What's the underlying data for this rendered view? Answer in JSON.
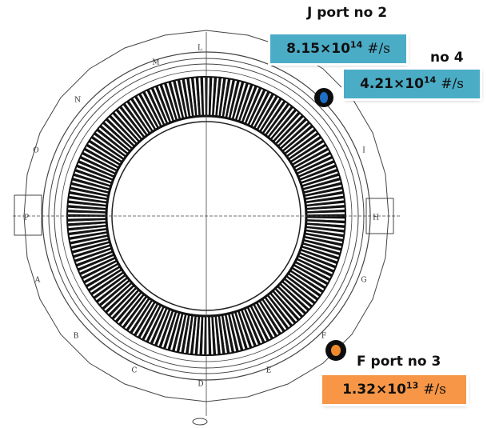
{
  "ports": [
    "A",
    "B",
    "C",
    "D",
    "E",
    "F",
    "G",
    "H",
    "I",
    "L",
    "M",
    "N",
    "O",
    "P"
  ],
  "callouts": [
    {
      "label": "J port no 2",
      "rate": {
        "mantissa": "8.15×10",
        "exponent": "14",
        "unit": "#/s"
      }
    },
    {
      "label": "no 4",
      "rate": {
        "mantissa": "4.21×10",
        "exponent": "14",
        "unit": "#/s"
      }
    },
    {
      "label": "F port no 3",
      "rate": {
        "mantissa": "1.32×10",
        "exponent": "13",
        "unit": "#/s"
      }
    }
  ]
}
